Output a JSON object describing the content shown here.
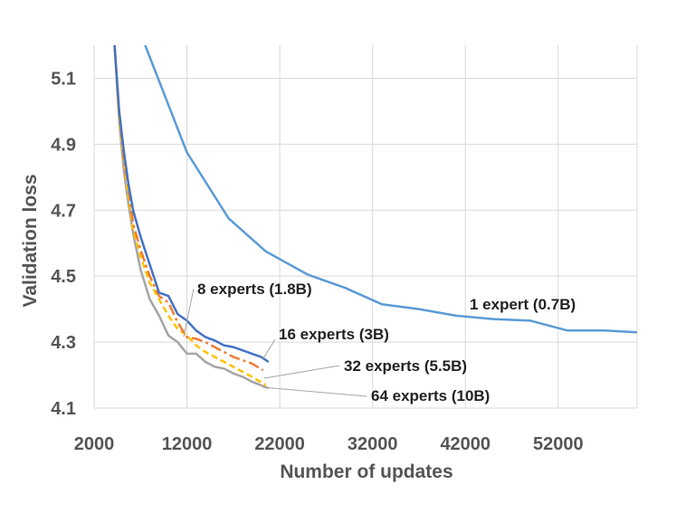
{
  "chart_data": {
    "type": "line",
    "title": "",
    "xlabel": "Number of updates",
    "ylabel": "Validation loss",
    "xlim": [
      2000,
      60500
    ],
    "ylim": [
      4.1,
      5.2
    ],
    "xticks": [
      2000,
      12000,
      22000,
      32000,
      42000,
      52000
    ],
    "yticks": [
      4.1,
      4.3,
      4.5,
      4.7,
      4.9,
      5.1
    ],
    "xtick_labels": [
      "2000",
      "12000",
      "22000",
      "32000",
      "42000",
      "52000"
    ],
    "ytick_labels": [
      "4.1",
      "4.3",
      "4.5",
      "4.7",
      "4.9",
      "5.1"
    ],
    "grid": "vertical and horizontal",
    "legend": "none (inline annotations)",
    "series": [
      {
        "name": "1 expert (0.7B)",
        "color": "#5b9bd5",
        "dash": "solid",
        "x": [
          7500,
          12000,
          16500,
          20500,
          25000,
          29000,
          33000,
          37000,
          41000,
          45000,
          49000,
          53000,
          57000,
          60500
        ],
        "y": [
          5.2,
          4.875,
          4.675,
          4.575,
          4.505,
          4.465,
          4.415,
          4.4,
          4.38,
          4.37,
          4.365,
          4.335,
          4.335,
          4.33
        ]
      },
      {
        "name": "8 experts (1.8B)",
        "color": "#4472c4",
        "dash": "solid",
        "x": [
          4200,
          4700,
          5200,
          5700,
          6200,
          7000,
          8000,
          9000,
          10000,
          11000,
          12000,
          13000,
          14000,
          15000,
          16000,
          17000,
          18000,
          19000,
          20000,
          20800
        ],
        "y": [
          5.2,
          5.0,
          4.88,
          4.78,
          4.7,
          4.62,
          4.535,
          4.45,
          4.44,
          4.385,
          4.365,
          4.335,
          4.315,
          4.305,
          4.29,
          4.285,
          4.275,
          4.265,
          4.255,
          4.24
        ]
      },
      {
        "name": "16 experts (3B)",
        "color": "#ed7d31",
        "dash": "dash-dot",
        "x": [
          4200,
          4700,
          5200,
          5700,
          6200,
          7000,
          8000,
          9000,
          10000,
          11000,
          12000,
          13000,
          14000,
          15000,
          16000,
          17000,
          18000,
          19000,
          20200
        ],
        "y": [
          5.2,
          5.0,
          4.86,
          4.77,
          4.66,
          4.58,
          4.5,
          4.44,
          4.42,
          4.36,
          4.315,
          4.31,
          4.3,
          4.285,
          4.27,
          4.255,
          4.245,
          4.235,
          4.215
        ]
      },
      {
        "name": "32 experts (5.5B)",
        "color": "#ffc000",
        "dash": "dashed",
        "x": [
          4200,
          4700,
          5200,
          5700,
          6200,
          7000,
          8000,
          9000,
          10000,
          11000,
          12000,
          13000,
          14000,
          15000,
          16000,
          17000,
          18000,
          19000,
          20500
        ],
        "y": [
          5.2,
          4.98,
          4.85,
          4.74,
          4.64,
          4.56,
          4.48,
          4.43,
          4.38,
          4.34,
          4.32,
          4.29,
          4.27,
          4.255,
          4.24,
          4.225,
          4.21,
          4.195,
          4.17
        ]
      },
      {
        "name": "64 experts (10B)",
        "color": "#a5a5a5",
        "dash": "solid",
        "x": [
          4200,
          4700,
          5200,
          5700,
          6200,
          7000,
          8000,
          9000,
          10000,
          11000,
          12000,
          13000,
          14000,
          15000,
          16000,
          17000,
          18000,
          19000,
          20800
        ],
        "y": [
          5.2,
          4.97,
          4.82,
          4.72,
          4.63,
          4.52,
          4.43,
          4.38,
          4.32,
          4.3,
          4.265,
          4.265,
          4.24,
          4.225,
          4.22,
          4.205,
          4.195,
          4.18,
          4.16
        ]
      }
    ],
    "annotations": [
      {
        "text": "1 expert (0.7B)",
        "series": "1 expert (0.7B)"
      },
      {
        "text": "8 experts (1.8B)",
        "series": "8 experts (1.8B)"
      },
      {
        "text": "16 experts (3B)",
        "series": "16 experts (3B)"
      },
      {
        "text": "32 experts (5.5B)",
        "series": "32 experts (5.5B)"
      },
      {
        "text": "64 experts (10B)",
        "series": "64 experts (10B)"
      }
    ]
  }
}
